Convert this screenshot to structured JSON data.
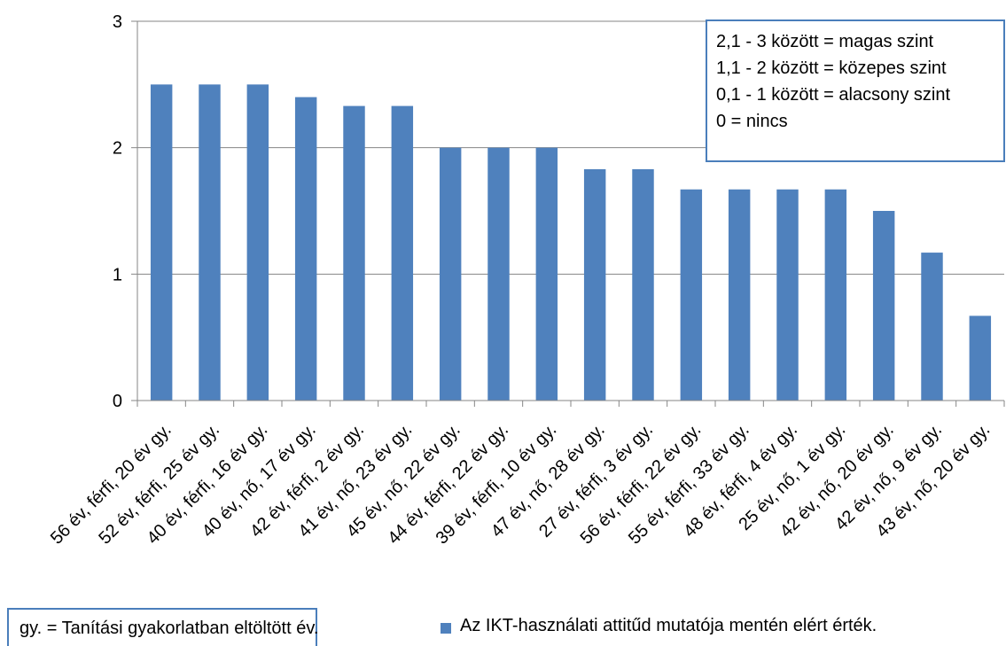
{
  "chart_data": {
    "type": "bar",
    "categories": [
      "56 év, férfi, 20 év gy.",
      "52 év, férfi, 25 év gy.",
      "40 év, férfi, 16 év gy.",
      "40 év, nő, 17 év gy.",
      "42 év, férfi, 2 év gy.",
      "41 év, nő, 23 év gy.",
      "45 év, nő, 22 év gy.",
      "44 év, férfi, 22 év gy.",
      "39 év, férfi, 10 év gy.",
      "47 év, nő, 28 év gy.",
      "27 év, férfi, 3 év gy.",
      "56 év, férfi, 22 év gy.",
      "55 év, férfi, 33 év gy.",
      "48 év, férfi, 4 év gy.",
      "25 év, nő, 1 év gy.",
      "42 év, nő, 20 év gy.",
      "42 év, nő, 9 év gy.",
      "43 év, nő, 20 év gy."
    ],
    "series": [
      {
        "name": "Az IKT-használati attitűd mutatója mentén elért érték.",
        "values": [
          2.5,
          2.5,
          2.5,
          2.4,
          2.33,
          2.33,
          2.0,
          2.0,
          2.0,
          1.83,
          1.83,
          1.67,
          1.67,
          1.67,
          1.67,
          1.5,
          1.17,
          0.67
        ]
      }
    ],
    "yticks": [
      "0",
      "1",
      "2",
      "3"
    ],
    "ylim": [
      0,
      3
    ],
    "grid": "horizontal",
    "bar_color": "#4f81bd",
    "axis_color": "#868686",
    "legend_placement": "bottom",
    "annotations": {
      "scale_lines": [
        "2,1 - 3 között = magas szint",
        "1,1 - 2 között = közepes szint",
        "0,1 - 1 között = alacsony szint",
        "0 = nincs"
      ],
      "note": "gy. = Tanítási gyakorlatban eltöltött év."
    }
  }
}
